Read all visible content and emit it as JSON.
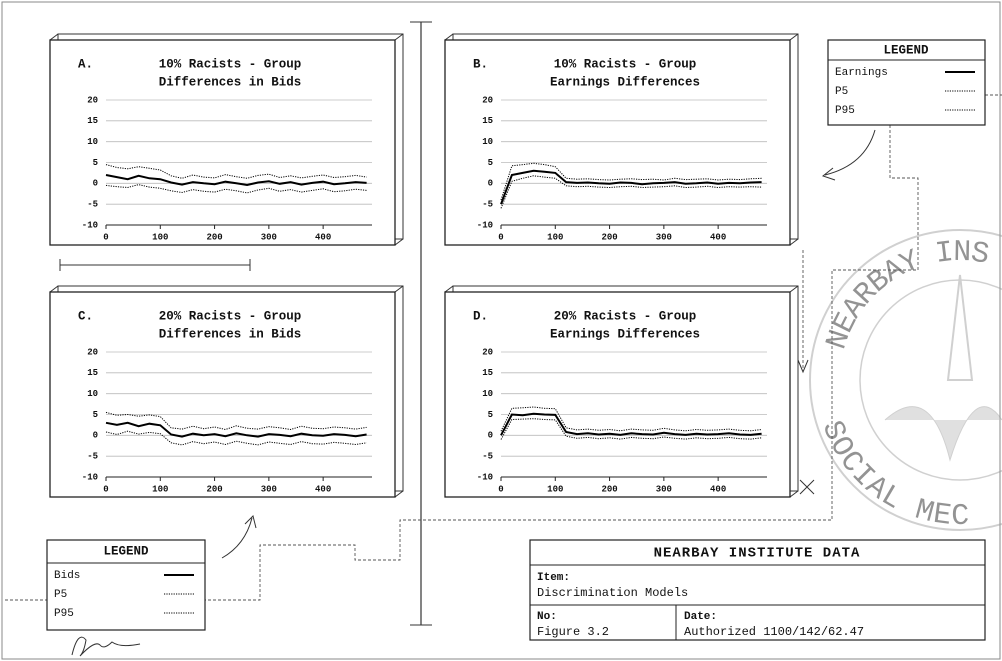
{
  "chart_data": [
    {
      "type": "line",
      "label": "A.",
      "title": [
        "10% Racists - Group",
        "Differences in Bids"
      ],
      "x": [
        0,
        20,
        40,
        60,
        80,
        100,
        120,
        140,
        160,
        180,
        200,
        220,
        240,
        260,
        280,
        300,
        320,
        340,
        360,
        380,
        400,
        420,
        440,
        460,
        480
      ],
      "xlim": [
        0,
        490
      ],
      "xticks": [
        0,
        100,
        200,
        300,
        400
      ],
      "ylim": [
        -10,
        20
      ],
      "yticks": [
        -10,
        -5,
        0,
        5,
        10,
        15,
        20
      ],
      "grid": true,
      "series": [
        {
          "name": "Bids",
          "color": "#000000",
          "line_style": "solid",
          "values": [
            2,
            1.5,
            1,
            1.8,
            1.2,
            1,
            0.2,
            -0.3,
            0.3,
            0,
            -0.2,
            0.4,
            0,
            -0.4,
            0.2,
            0.5,
            -0.1,
            0.3,
            -0.3,
            0.1,
            0.4,
            -0.2,
            0,
            0.3,
            0.1
          ]
        },
        {
          "name": "P5",
          "color": "#000000",
          "line_style": "dotted",
          "values": [
            -0.5,
            -0.8,
            -1,
            -0.3,
            -0.9,
            -1.2,
            -1.8,
            -2.2,
            -1.5,
            -1.9,
            -2.1,
            -1.4,
            -1.8,
            -2.3,
            -1.6,
            -1.2,
            -1.9,
            -1.5,
            -2.1,
            -1.7,
            -1.3,
            -2,
            -1.8,
            -1.4,
            -1.7
          ]
        },
        {
          "name": "P95",
          "color": "#000000",
          "line_style": "dotted",
          "values": [
            4.5,
            3.8,
            3.5,
            4,
            3.6,
            3.2,
            1.8,
            1.2,
            2,
            1.5,
            1.3,
            2.1,
            1.6,
            1.2,
            1.9,
            2.2,
            1.4,
            1.8,
            1.3,
            1.7,
            2,
            1.4,
            1.6,
            1.9,
            1.5
          ]
        }
      ]
    },
    {
      "type": "line",
      "label": "B.",
      "title": [
        "10% Racists - Group",
        "Earnings Differences"
      ],
      "x": [
        0,
        20,
        40,
        60,
        80,
        100,
        120,
        140,
        160,
        180,
        200,
        220,
        240,
        260,
        280,
        300,
        320,
        340,
        360,
        380,
        400,
        420,
        440,
        460,
        480
      ],
      "xlim": [
        0,
        490
      ],
      "xticks": [
        0,
        100,
        200,
        300,
        400
      ],
      "ylim": [
        -10,
        20
      ],
      "yticks": [
        -10,
        -5,
        0,
        5,
        10,
        15,
        20
      ],
      "grid": true,
      "series": [
        {
          "name": "Earnings",
          "color": "#000000",
          "line_style": "solid",
          "values": [
            -5,
            2,
            2.5,
            3,
            2.8,
            2.5,
            0.3,
            0.1,
            0.2,
            0,
            -0.1,
            0.2,
            0.1,
            -0.2,
            0,
            0.1,
            0.3,
            -0.1,
            0,
            0.2,
            -0.1,
            0.1,
            0,
            0.2,
            0.3
          ]
        },
        {
          "name": "P5",
          "color": "#000000",
          "line_style": "dotted",
          "values": [
            -6,
            0.5,
            1.2,
            1.8,
            1.5,
            1.2,
            -0.6,
            -0.8,
            -0.7,
            -0.9,
            -1,
            -0.8,
            -0.7,
            -1,
            -0.9,
            -0.8,
            -0.6,
            -1,
            -0.9,
            -0.7,
            -1,
            -0.8,
            -0.9,
            -0.8,
            -0.9
          ]
        },
        {
          "name": "P95",
          "color": "#000000",
          "line_style": "dotted",
          "values": [
            -4,
            4.2,
            4.5,
            4.8,
            4.5,
            4,
            1.2,
            1,
            1.1,
            0.9,
            0.8,
            1,
            1.1,
            0.9,
            1,
            0.8,
            1.2,
            0.9,
            1,
            1.1,
            0.8,
            1,
            0.9,
            1.1,
            1.2
          ]
        }
      ]
    },
    {
      "type": "line",
      "label": "C.",
      "title": [
        "20% Racists - Group",
        "Differences in Bids"
      ],
      "x": [
        0,
        20,
        40,
        60,
        80,
        100,
        120,
        140,
        160,
        180,
        200,
        220,
        240,
        260,
        280,
        300,
        320,
        340,
        360,
        380,
        400,
        420,
        440,
        460,
        480
      ],
      "xlim": [
        0,
        490
      ],
      "xticks": [
        0,
        100,
        200,
        300,
        400
      ],
      "ylim": [
        -10,
        20
      ],
      "yticks": [
        -10,
        -5,
        0,
        5,
        10,
        15,
        20
      ],
      "grid": true,
      "series": [
        {
          "name": "Bids",
          "color": "#000000",
          "line_style": "solid",
          "values": [
            3,
            2.5,
            3,
            2.2,
            2.8,
            2.4,
            0.2,
            -0.3,
            0.4,
            0,
            0.3,
            -0.2,
            0.5,
            0,
            -0.3,
            0.3,
            0.1,
            -0.2,
            0.4,
            0,
            -0.1,
            0.3,
            0.1,
            -0.2,
            0.2
          ]
        },
        {
          "name": "P5",
          "color": "#000000",
          "line_style": "dotted",
          "values": [
            0.8,
            0.2,
            1,
            0.3,
            0.7,
            0.4,
            -1.8,
            -2.3,
            -1.5,
            -2,
            -1.6,
            -2.2,
            -1.4,
            -1.9,
            -2.3,
            -1.6,
            -1.9,
            -2.2,
            -1.5,
            -2,
            -2.1,
            -1.7,
            -1.9,
            -2.2,
            -1.8
          ]
        },
        {
          "name": "P95",
          "color": "#000000",
          "line_style": "dotted",
          "values": [
            5.5,
            4.8,
            5,
            4.6,
            4.9,
            4.5,
            1.8,
            1.5,
            2.2,
            1.6,
            2,
            1.4,
            2.3,
            1.7,
            1.5,
            2.1,
            1.8,
            1.4,
            2.2,
            1.7,
            1.6,
            2,
            1.8,
            1.5,
            1.9
          ]
        }
      ]
    },
    {
      "type": "line",
      "label": "D.",
      "title": [
        "20% Racists - Group",
        "Earnings Differences"
      ],
      "x": [
        0,
        20,
        40,
        60,
        80,
        100,
        120,
        140,
        160,
        180,
        200,
        220,
        240,
        260,
        280,
        300,
        320,
        340,
        360,
        380,
        400,
        420,
        440,
        460,
        480
      ],
      "xlim": [
        0,
        490
      ],
      "xticks": [
        0,
        100,
        200,
        300,
        400
      ],
      "ylim": [
        -10,
        20
      ],
      "yticks": [
        -10,
        -5,
        0,
        5,
        10,
        15,
        20
      ],
      "grid": true,
      "series": [
        {
          "name": "Earnings",
          "color": "#000000",
          "line_style": "solid",
          "values": [
            0,
            5,
            4.8,
            5.2,
            5,
            4.9,
            0.8,
            0.3,
            0.5,
            0.2,
            0.4,
            0.1,
            0.5,
            0.3,
            0.2,
            0.6,
            0.3,
            0.1,
            0.4,
            0.2,
            0.3,
            0.5,
            0.2,
            0.1,
            0.4
          ]
        },
        {
          "name": "P5",
          "color": "#000000",
          "line_style": "dotted",
          "values": [
            -1,
            3.8,
            3.9,
            4,
            3.8,
            3.7,
            -0.2,
            -0.7,
            -0.5,
            -0.8,
            -0.6,
            -0.9,
            -0.5,
            -0.7,
            -0.8,
            -0.4,
            -0.7,
            -0.9,
            -0.6,
            -0.8,
            -0.7,
            -0.5,
            -0.8,
            -0.9,
            -0.6
          ]
        },
        {
          "name": "P95",
          "color": "#000000",
          "line_style": "dotted",
          "values": [
            1,
            6.5,
            6.6,
            6.8,
            6.5,
            6.4,
            1.8,
            1.3,
            1.5,
            1.2,
            1.4,
            1.1,
            1.5,
            1.3,
            1.2,
            1.7,
            1.3,
            1.1,
            1.4,
            1.2,
            1.3,
            1.5,
            1.2,
            1.1,
            1.4
          ]
        }
      ]
    }
  ],
  "legends": [
    {
      "title": "LEGEND"
    },
    {
      "title": "LEGEND"
    }
  ],
  "info": {
    "title": "NEARBAY INSTITUTE DATA",
    "item_label": "Item:",
    "item": "Discrimination Models",
    "no_label": "No:",
    "no": "Figure 3.2",
    "date_label": "Date:",
    "date": "Authorized 1100/142/62.47"
  },
  "seal": {
    "top_text": "NEARBAY INS",
    "bottom_text": "SOCIAL MEC"
  }
}
